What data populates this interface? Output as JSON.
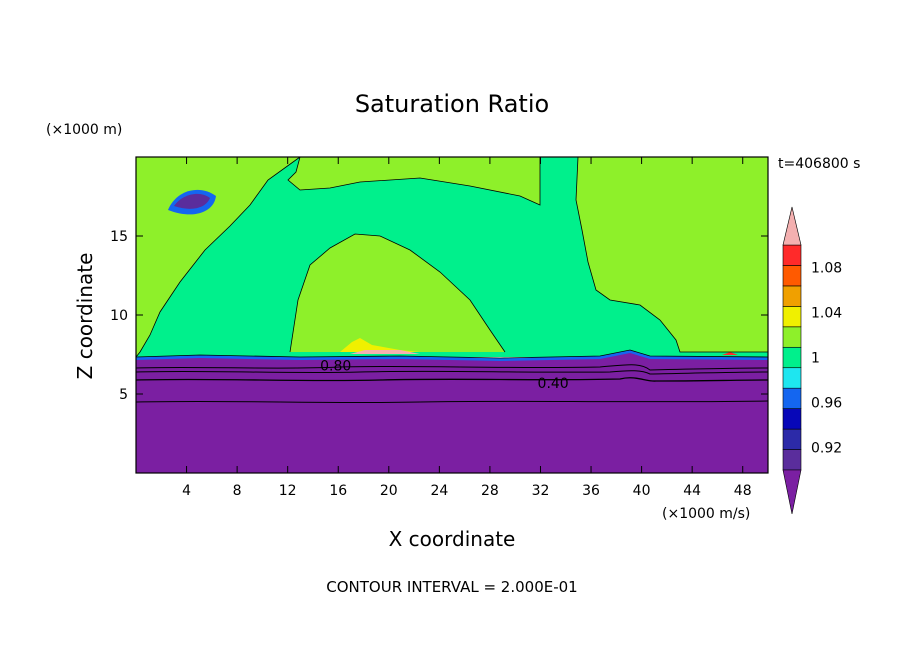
{
  "chart_data": {
    "type": "heatmap",
    "title": "Saturation Ratio",
    "xlabel": "X coordinate",
    "ylabel": "Z coordinate",
    "x_unit": "(×1000 m/s)",
    "y_unit": "(×1000 m)",
    "time_label": "t=406800 s",
    "footer": "CONTOUR INTERVAL = 2.000E-01",
    "xlim": [
      0,
      50
    ],
    "ylim": [
      0,
      20
    ],
    "x_ticks": [
      4,
      8,
      12,
      16,
      20,
      24,
      28,
      32,
      36,
      40,
      44,
      48
    ],
    "y_ticks": [
      5,
      10,
      15
    ],
    "contour_labels": [
      {
        "text": "0.80",
        "x": 15.8,
        "y": 6.8
      },
      {
        "text": "0.40",
        "x": 33.0,
        "y": 5.7
      }
    ],
    "colorbar": {
      "levels": [
        0.9,
        0.92,
        0.94,
        0.96,
        0.98,
        1.0,
        1.02,
        1.04,
        1.06,
        1.08,
        1.1
      ],
      "tick_labels": [
        "0.92",
        "0.96",
        "1",
        "1.04",
        "1.08"
      ],
      "colors": [
        "#5a2d9c",
        "#2c2aa8",
        "#0707b8",
        "#1466f0",
        "#1ee6f0",
        "#00f08c",
        "#8ef02a",
        "#f0f000",
        "#f0a000",
        "#ff5a00",
        "#ff2a2a"
      ],
      "under_color": "#7b1fa2",
      "over_color": "#f4b0b0"
    }
  }
}
